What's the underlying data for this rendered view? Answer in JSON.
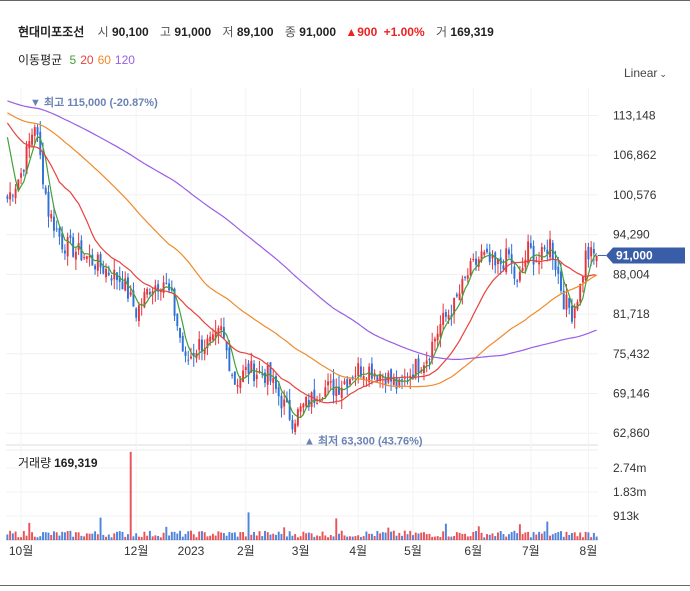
{
  "header": {
    "name": "현대미포조선",
    "open_label": "시",
    "open": "90,100",
    "high_label": "고",
    "high": "91,000",
    "low_label": "저",
    "low": "89,100",
    "close_label": "종",
    "close": "91,000",
    "change": "900",
    "change_pct": "+1.00%",
    "volume_label": "거",
    "volume": "169,319"
  },
  "ma_legend": {
    "label": "이동평균",
    "periods": [
      "5",
      "20",
      "60",
      "120"
    ],
    "colors": [
      "#3fa136",
      "#e8413c",
      "#f08a2c",
      "#9b5de5"
    ]
  },
  "scale_type": "Linear",
  "colors": {
    "up": "#e5343a",
    "down": "#2f6fd6",
    "price_tag": "#3a5da8",
    "annotation": "#6a82b4"
  },
  "chart_data": {
    "type": "candlestick",
    "y_ticks": [
      "113,148",
      "106,862",
      "100,576",
      "94,290",
      "88,004",
      "81,718",
      "75,432",
      "69,146",
      "62,860"
    ],
    "y_tick_values": [
      113148,
      106862,
      100576,
      94290,
      88004,
      81718,
      75432,
      69146,
      62860
    ],
    "ylim": [
      61000,
      117500
    ],
    "x_labels": [
      "10월",
      "12월",
      "2023",
      "2월",
      "3월",
      "4월",
      "5월",
      "6월",
      "7월",
      "8월"
    ],
    "x_label_index": [
      5,
      47,
      67,
      87,
      107,
      128,
      148,
      170,
      191,
      212
    ],
    "current_price": "91,000",
    "max_annotation": "▼ 최고 115,000 (-20.87%)",
    "max_value": 115000,
    "min_annotation": "▲ 최저 63,300 (43.76%)",
    "min_value": 63300,
    "close_keypoints": [
      [
        0,
        100000
      ],
      [
        5,
        104000
      ],
      [
        10,
        112000
      ],
      [
        15,
        98000
      ],
      [
        20,
        93000
      ],
      [
        28,
        91000
      ],
      [
        35,
        89000
      ],
      [
        42,
        87000
      ],
      [
        47,
        82000
      ],
      [
        52,
        86000
      ],
      [
        57,
        87000
      ],
      [
        60,
        84000
      ],
      [
        65,
        74000
      ],
      [
        70,
        77000
      ],
      [
        75,
        77000
      ],
      [
        78,
        79000
      ],
      [
        83,
        71000
      ],
      [
        88,
        73000
      ],
      [
        95,
        72000
      ],
      [
        100,
        68000
      ],
      [
        104,
        65000
      ],
      [
        108,
        67000
      ],
      [
        115,
        70000
      ],
      [
        120,
        70000
      ],
      [
        128,
        73000
      ],
      [
        132,
        73000
      ],
      [
        138,
        72000
      ],
      [
        143,
        70000
      ],
      [
        148,
        73000
      ],
      [
        153,
        75000
      ],
      [
        158,
        80000
      ],
      [
        163,
        83000
      ],
      [
        168,
        88000
      ],
      [
        173,
        91000
      ],
      [
        178,
        89000
      ],
      [
        183,
        91000
      ],
      [
        186,
        86000
      ],
      [
        190,
        92000
      ],
      [
        194,
        90000
      ],
      [
        198,
        93000
      ],
      [
        201,
        88000
      ],
      [
        203,
        84000
      ],
      [
        206,
        82000
      ],
      [
        209,
        86000
      ],
      [
        211,
        91000
      ]
    ],
    "volume_label": "거래량",
    "volume_value": "169,319",
    "volume_ticks": [
      "2.74m",
      "1.83m",
      "913k"
    ],
    "volume_tick_values": [
      2740000,
      1830000,
      913000
    ],
    "volume_ylim": [
      0,
      3420000
    ],
    "volume_spikes": [
      [
        45,
        3350000
      ],
      [
        88,
        1050000
      ],
      [
        34,
        850000
      ],
      [
        120,
        820000
      ],
      [
        197,
        700000
      ],
      [
        8,
        650000
      ],
      [
        160,
        620000
      ],
      [
        187,
        600000
      ],
      [
        172,
        520000
      ],
      [
        58,
        500000
      ],
      [
        101,
        480000
      ],
      [
        139,
        470000
      ]
    ]
  }
}
